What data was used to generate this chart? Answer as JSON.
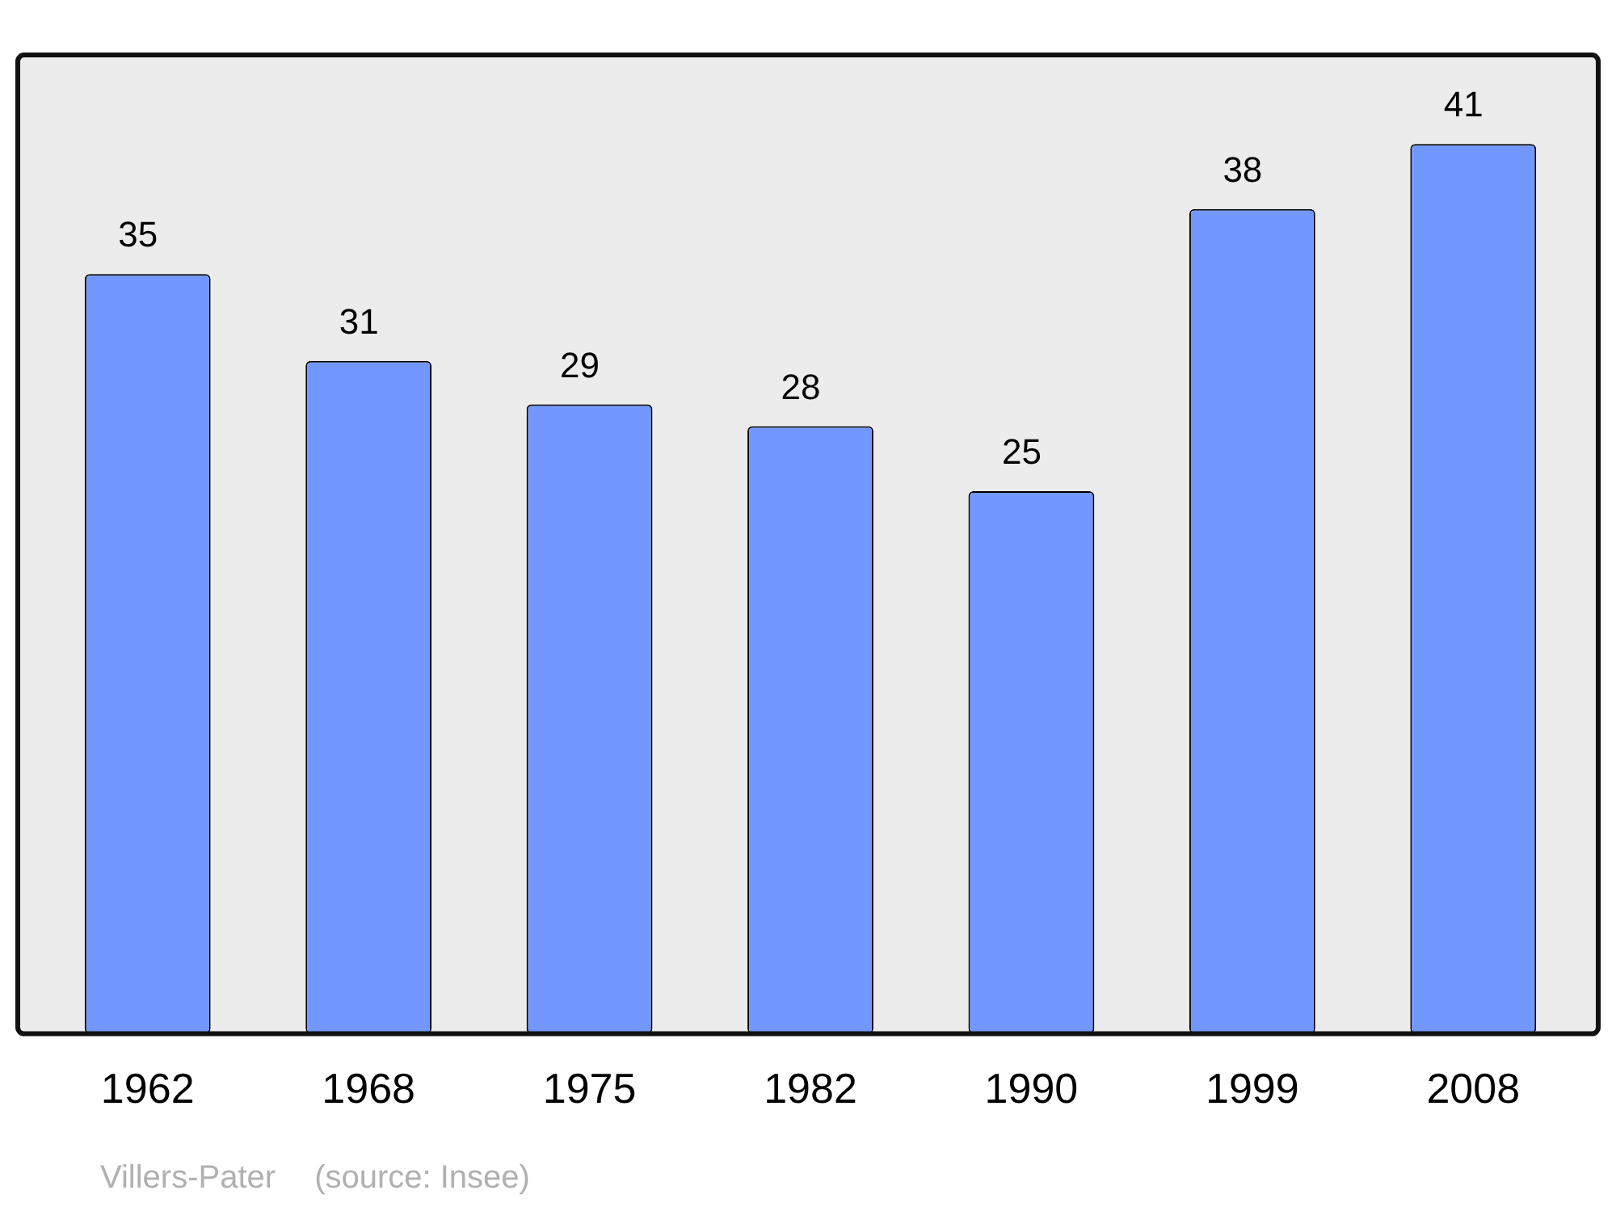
{
  "chart_data": {
    "type": "bar",
    "categories": [
      "1962",
      "1968",
      "1975",
      "1982",
      "1990",
      "1999",
      "2008"
    ],
    "values": [
      35,
      31,
      29,
      28,
      25,
      38,
      41
    ],
    "color": "#7298ff",
    "data_labels": true,
    "tick_labels": "x",
    "legend": false,
    "annotations": [
      "Villers-Pater",
      "(source: Insee)"
    ]
  }
}
